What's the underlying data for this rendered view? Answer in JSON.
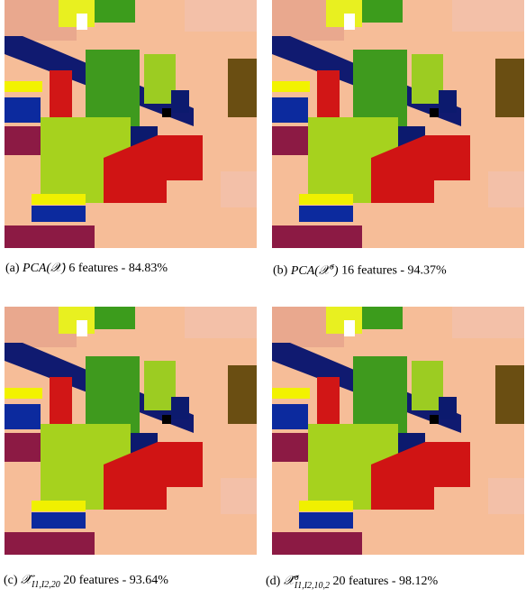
{
  "figures": [
    {
      "label": "(a)",
      "math": {
        "base": "PCA(𝒳)"
      },
      "text": "6 features - 84.83%"
    },
    {
      "label": "(b)",
      "math": {
        "base": "PCA(𝒳",
        "sup": "σ",
        "tail": ")"
      },
      "text": "16 features - 94.37%"
    },
    {
      "label": "(c)",
      "math": {
        "base": "𝒳̂",
        "sub": "I1,I2,20"
      },
      "text": "20 features - 93.64%"
    },
    {
      "label": "(d)",
      "math": {
        "base": "𝒳̂",
        "sup": "σ",
        "sub": "I1,I2,10,2"
      },
      "text": "20 features - 98.12%"
    }
  ]
}
